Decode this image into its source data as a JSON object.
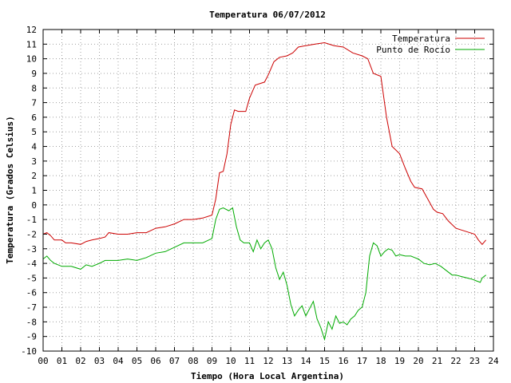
{
  "chart_data": {
    "type": "line",
    "title": "Temperatura 06/07/2012",
    "xlabel": "Tiempo (Hora Local Argentina)",
    "ylabel": "Temperatura (Grados Celsius)",
    "xlim": [
      0,
      24
    ],
    "ylim": [
      -10,
      12
    ],
    "x_ticks": [
      "00",
      "01",
      "02",
      "03",
      "04",
      "05",
      "06",
      "07",
      "08",
      "09",
      "10",
      "11",
      "12",
      "13",
      "14",
      "15",
      "16",
      "17",
      "18",
      "19",
      "20",
      "21",
      "22",
      "23",
      "24"
    ],
    "y_ticks": [
      12,
      11,
      10,
      9,
      8,
      7,
      6,
      5,
      4,
      3,
      2,
      1,
      0,
      -1,
      -2,
      -3,
      -4,
      -5,
      -6,
      -7,
      -8,
      -9,
      -10
    ],
    "grid": true,
    "legend_position": "top-right",
    "series": [
      {
        "name": "Temperatura",
        "color": "#cc0000",
        "points": [
          [
            0.0,
            -2.0
          ],
          [
            0.2,
            -1.9
          ],
          [
            0.4,
            -2.1
          ],
          [
            0.6,
            -2.4
          ],
          [
            1.0,
            -2.4
          ],
          [
            1.2,
            -2.6
          ],
          [
            1.5,
            -2.6
          ],
          [
            2.0,
            -2.7
          ],
          [
            2.3,
            -2.5
          ],
          [
            2.6,
            -2.4
          ],
          [
            3.0,
            -2.3
          ],
          [
            3.3,
            -2.2
          ],
          [
            3.5,
            -1.9
          ],
          [
            4.0,
            -2.0
          ],
          [
            4.5,
            -2.0
          ],
          [
            5.0,
            -1.9
          ],
          [
            5.5,
            -1.9
          ],
          [
            6.0,
            -1.6
          ],
          [
            6.5,
            -1.5
          ],
          [
            7.0,
            -1.3
          ],
          [
            7.5,
            -1.0
          ],
          [
            8.0,
            -1.0
          ],
          [
            8.5,
            -0.9
          ],
          [
            9.0,
            -0.7
          ],
          [
            9.2,
            0.4
          ],
          [
            9.4,
            2.2
          ],
          [
            9.6,
            2.3
          ],
          [
            9.8,
            3.5
          ],
          [
            10.0,
            5.5
          ],
          [
            10.2,
            6.5
          ],
          [
            10.4,
            6.4
          ],
          [
            10.8,
            6.4
          ],
          [
            11.0,
            7.3
          ],
          [
            11.3,
            8.2
          ],
          [
            11.8,
            8.4
          ],
          [
            12.0,
            8.9
          ],
          [
            12.3,
            9.8
          ],
          [
            12.6,
            10.1
          ],
          [
            13.0,
            10.2
          ],
          [
            13.3,
            10.4
          ],
          [
            13.6,
            10.8
          ],
          [
            14.0,
            10.9
          ],
          [
            14.5,
            11.0
          ],
          [
            15.0,
            11.1
          ],
          [
            15.5,
            10.9
          ],
          [
            16.0,
            10.8
          ],
          [
            16.5,
            10.4
          ],
          [
            17.0,
            10.2
          ],
          [
            17.3,
            10.0
          ],
          [
            17.6,
            9.0
          ],
          [
            18.0,
            8.8
          ],
          [
            18.3,
            6.0
          ],
          [
            18.6,
            4.0
          ],
          [
            19.0,
            3.5
          ],
          [
            19.3,
            2.5
          ],
          [
            19.6,
            1.6
          ],
          [
            19.8,
            1.2
          ],
          [
            20.2,
            1.1
          ],
          [
            20.5,
            0.4
          ],
          [
            20.8,
            -0.3
          ],
          [
            21.0,
            -0.5
          ],
          [
            21.3,
            -0.6
          ],
          [
            21.6,
            -1.1
          ],
          [
            22.0,
            -1.6
          ],
          [
            22.5,
            -1.8
          ],
          [
            23.0,
            -2.0
          ],
          [
            23.2,
            -2.4
          ],
          [
            23.4,
            -2.7
          ],
          [
            23.6,
            -2.4
          ]
        ]
      },
      {
        "name": "Punto de Rocío",
        "color": "#00aa00",
        "points": [
          [
            0.0,
            -3.7
          ],
          [
            0.2,
            -3.5
          ],
          [
            0.4,
            -3.8
          ],
          [
            0.6,
            -4.0
          ],
          [
            1.0,
            -4.2
          ],
          [
            1.5,
            -4.2
          ],
          [
            2.0,
            -4.4
          ],
          [
            2.3,
            -4.1
          ],
          [
            2.6,
            -4.2
          ],
          [
            3.0,
            -4.0
          ],
          [
            3.3,
            -3.8
          ],
          [
            3.6,
            -3.8
          ],
          [
            4.0,
            -3.8
          ],
          [
            4.5,
            -3.7
          ],
          [
            5.0,
            -3.8
          ],
          [
            5.5,
            -3.6
          ],
          [
            6.0,
            -3.3
          ],
          [
            6.5,
            -3.2
          ],
          [
            7.0,
            -2.9
          ],
          [
            7.5,
            -2.6
          ],
          [
            8.0,
            -2.6
          ],
          [
            8.5,
            -2.6
          ],
          [
            9.0,
            -2.3
          ],
          [
            9.2,
            -1.0
          ],
          [
            9.4,
            -0.3
          ],
          [
            9.6,
            -0.2
          ],
          [
            9.9,
            -0.4
          ],
          [
            10.1,
            -0.2
          ],
          [
            10.3,
            -1.5
          ],
          [
            10.5,
            -2.4
          ],
          [
            10.7,
            -2.6
          ],
          [
            11.0,
            -2.6
          ],
          [
            11.2,
            -3.2
          ],
          [
            11.4,
            -2.4
          ],
          [
            11.6,
            -3.0
          ],
          [
            11.8,
            -2.6
          ],
          [
            12.0,
            -2.4
          ],
          [
            12.2,
            -3.0
          ],
          [
            12.4,
            -4.3
          ],
          [
            12.6,
            -5.1
          ],
          [
            12.8,
            -4.6
          ],
          [
            13.0,
            -5.5
          ],
          [
            13.2,
            -6.8
          ],
          [
            13.4,
            -7.6
          ],
          [
            13.6,
            -7.2
          ],
          [
            13.8,
            -6.9
          ],
          [
            14.0,
            -7.6
          ],
          [
            14.2,
            -7.1
          ],
          [
            14.4,
            -6.6
          ],
          [
            14.6,
            -7.8
          ],
          [
            14.8,
            -8.4
          ],
          [
            15.0,
            -9.2
          ],
          [
            15.2,
            -8.0
          ],
          [
            15.4,
            -8.5
          ],
          [
            15.6,
            -7.6
          ],
          [
            15.8,
            -8.1
          ],
          [
            16.0,
            -8.0
          ],
          [
            16.2,
            -8.2
          ],
          [
            16.4,
            -7.8
          ],
          [
            16.6,
            -7.6
          ],
          [
            16.8,
            -7.2
          ],
          [
            17.0,
            -7.0
          ],
          [
            17.2,
            -6.0
          ],
          [
            17.4,
            -3.5
          ],
          [
            17.6,
            -2.6
          ],
          [
            17.8,
            -2.8
          ],
          [
            18.0,
            -3.5
          ],
          [
            18.2,
            -3.2
          ],
          [
            18.4,
            -3.0
          ],
          [
            18.6,
            -3.1
          ],
          [
            18.8,
            -3.5
          ],
          [
            19.0,
            -3.4
          ],
          [
            19.3,
            -3.5
          ],
          [
            19.6,
            -3.5
          ],
          [
            19.8,
            -3.6
          ],
          [
            20.0,
            -3.7
          ],
          [
            20.3,
            -4.0
          ],
          [
            20.6,
            -4.1
          ],
          [
            20.9,
            -4.0
          ],
          [
            21.2,
            -4.2
          ],
          [
            21.5,
            -4.5
          ],
          [
            21.8,
            -4.8
          ],
          [
            22.0,
            -4.8
          ],
          [
            22.3,
            -4.9
          ],
          [
            22.6,
            -5.0
          ],
          [
            22.9,
            -5.1
          ],
          [
            23.1,
            -5.2
          ],
          [
            23.3,
            -5.3
          ],
          [
            23.4,
            -5.0
          ],
          [
            23.6,
            -4.8
          ]
        ]
      }
    ]
  }
}
